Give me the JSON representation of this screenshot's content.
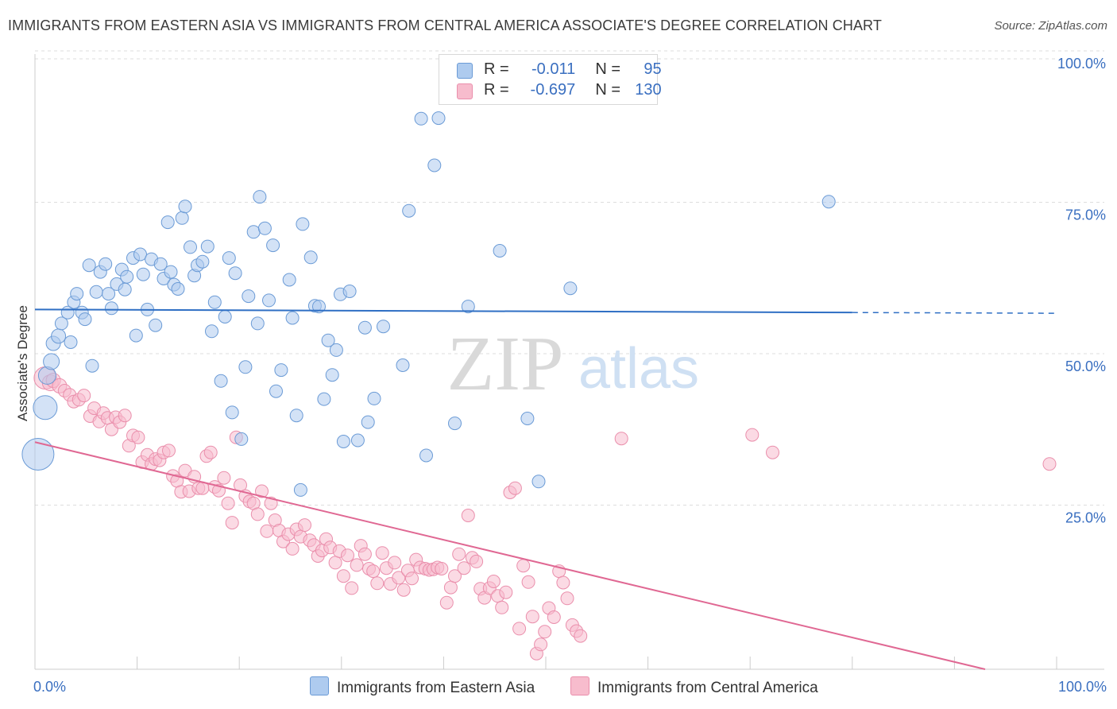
{
  "title": "IMMIGRANTS FROM EASTERN ASIA VS IMMIGRANTS FROM CENTRAL AMERICA ASSOCIATE'S DEGREE CORRELATION CHART",
  "source": "Source: ZipAtlas.com",
  "watermark": {
    "zip": "ZIP",
    "atlas": "atlas"
  },
  "legend": {
    "blue": {
      "r_label": "R =",
      "r_value": "-0.011",
      "n_label": "N =",
      "n_value": "95"
    },
    "pink": {
      "r_label": "R =",
      "r_value": "-0.697",
      "n_label": "N =",
      "n_value": "130"
    }
  },
  "colors": {
    "blue_fill": "#aecbef",
    "blue_stroke": "#6b9bd6",
    "blue_line": "#2f6fc4",
    "pink_fill": "#f7bccd",
    "pink_stroke": "#ea8fac",
    "pink_line": "#e06893",
    "tick_label": "#3a6fc0",
    "grid": "#dddddd"
  },
  "chart_data": {
    "type": "scatter",
    "title": "IMMIGRANTS FROM EASTERN ASIA VS IMMIGRANTS FROM CENTRAL AMERICA ASSOCIATE'S DEGREE CORRELATION CHART",
    "xlabel": "",
    "ylabel": "Associate's Degree",
    "xlim": [
      0,
      100
    ],
    "ylim": [
      0,
      100
    ],
    "x_tick_labels": [
      "0.0%",
      "100.0%"
    ],
    "y_ticks": [
      25,
      50,
      75,
      100
    ],
    "y_tick_labels": [
      "25.0%",
      "50.0%",
      "75.0%",
      "100.0%"
    ],
    "series": [
      {
        "name": "Immigrants from Eastern Asia",
        "color": "blue",
        "trend": {
          "x0": 0,
          "y0": 59.4,
          "x1": 80,
          "y1": 58.9,
          "dash_to": 100
        },
        "points": [
          [
            0.3,
            35.5,
            20
          ],
          [
            1.0,
            43.2,
            15
          ],
          [
            1.2,
            48.5,
            11
          ],
          [
            1.6,
            50.8,
            10
          ],
          [
            1.8,
            53.8,
            9
          ],
          [
            2.3,
            55.0,
            9
          ],
          [
            2.6,
            57.1,
            8
          ],
          [
            3.2,
            58.9,
            8
          ],
          [
            3.5,
            54.0,
            8
          ],
          [
            3.8,
            60.6,
            8
          ],
          [
            4.1,
            62.0,
            8
          ],
          [
            4.6,
            58.9,
            8
          ],
          [
            4.9,
            57.8,
            8
          ],
          [
            5.6,
            50.1,
            8
          ],
          [
            6.0,
            62.3,
            8
          ],
          [
            6.4,
            65.6,
            8
          ],
          [
            5.3,
            66.7,
            8
          ],
          [
            6.9,
            66.9,
            8
          ],
          [
            7.2,
            62.0,
            8
          ],
          [
            7.5,
            59.6,
            8
          ],
          [
            8.0,
            63.6,
            8
          ],
          [
            8.5,
            66.0,
            8
          ],
          [
            8.8,
            62.7,
            8
          ],
          [
            9.0,
            64.8,
            8
          ],
          [
            9.6,
            67.9,
            8
          ],
          [
            9.9,
            55.1,
            8
          ],
          [
            10.3,
            68.5,
            8
          ],
          [
            10.6,
            65.2,
            8
          ],
          [
            11.0,
            59.4,
            8
          ],
          [
            11.4,
            67.7,
            8
          ],
          [
            11.8,
            56.8,
            8
          ],
          [
            12.3,
            66.9,
            8
          ],
          [
            12.6,
            64.5,
            8
          ],
          [
            13.0,
            73.8,
            8
          ],
          [
            13.3,
            65.6,
            8
          ],
          [
            13.6,
            63.5,
            8
          ],
          [
            14.0,
            62.8,
            8
          ],
          [
            14.4,
            74.5,
            8
          ],
          [
            14.7,
            76.4,
            8
          ],
          [
            15.2,
            69.7,
            8
          ],
          [
            15.6,
            65.0,
            8
          ],
          [
            15.9,
            66.7,
            8
          ],
          [
            16.4,
            67.3,
            8
          ],
          [
            16.9,
            69.8,
            8
          ],
          [
            17.3,
            55.8,
            8
          ],
          [
            17.6,
            60.6,
            8
          ],
          [
            18.2,
            47.6,
            8
          ],
          [
            18.6,
            58.2,
            8
          ],
          [
            19.0,
            67.9,
            8
          ],
          [
            19.3,
            42.4,
            8
          ],
          [
            19.6,
            65.4,
            8
          ],
          [
            20.2,
            38.0,
            8
          ],
          [
            20.6,
            49.9,
            8
          ],
          [
            20.9,
            61.6,
            8
          ],
          [
            21.4,
            72.2,
            8
          ],
          [
            21.8,
            57.1,
            8
          ],
          [
            22.0,
            78.0,
            8
          ],
          [
            22.5,
            72.8,
            8
          ],
          [
            22.9,
            60.9,
            8
          ],
          [
            23.3,
            70.0,
            8
          ],
          [
            23.6,
            45.9,
            8
          ],
          [
            24.1,
            49.4,
            8
          ],
          [
            24.9,
            64.3,
            8
          ],
          [
            25.2,
            58.0,
            8
          ],
          [
            25.6,
            41.9,
            8
          ],
          [
            26.0,
            29.6,
            8
          ],
          [
            26.2,
            73.5,
            8
          ],
          [
            27.0,
            68.0,
            8
          ],
          [
            27.4,
            60.0,
            8
          ],
          [
            27.8,
            59.9,
            8
          ],
          [
            28.3,
            44.6,
            8
          ],
          [
            28.7,
            54.3,
            8
          ],
          [
            29.1,
            48.6,
            8
          ],
          [
            29.5,
            52.7,
            8
          ],
          [
            29.9,
            61.9,
            8
          ],
          [
            30.2,
            37.6,
            8
          ],
          [
            30.8,
            62.4,
            8
          ],
          [
            31.6,
            37.8,
            8
          ],
          [
            32.3,
            56.4,
            8
          ],
          [
            32.6,
            40.8,
            8
          ],
          [
            33.2,
            44.7,
            8
          ],
          [
            34.1,
            56.6,
            8
          ],
          [
            36.0,
            50.2,
            8
          ],
          [
            36.6,
            75.7,
            8
          ],
          [
            37.8,
            90.9,
            8
          ],
          [
            38.3,
            35.3,
            8
          ],
          [
            39.1,
            83.2,
            8
          ],
          [
            39.5,
            91.0,
            8
          ],
          [
            41.1,
            40.6,
            8
          ],
          [
            42.4,
            59.9,
            8
          ],
          [
            45.5,
            69.1,
            8
          ],
          [
            48.2,
            41.4,
            8
          ],
          [
            49.3,
            31.0,
            8
          ],
          [
            52.4,
            62.9,
            8
          ],
          [
            77.7,
            77.2,
            8
          ]
        ]
      },
      {
        "name": "Immigrants from Central America",
        "color": "pink",
        "trend": {
          "x0": 0,
          "y0": 37.5,
          "x1": 93,
          "y1": 0
        },
        "points": [
          [
            1.0,
            48.1,
            14
          ],
          [
            1.5,
            47.3,
            10
          ],
          [
            1.8,
            47.7,
            9
          ],
          [
            2.4,
            46.8,
            9
          ],
          [
            2.9,
            46.0,
            8
          ],
          [
            3.4,
            45.3,
            8
          ],
          [
            3.8,
            44.2,
            8
          ],
          [
            4.3,
            44.5,
            8
          ],
          [
            4.8,
            45.2,
            8
          ],
          [
            5.4,
            41.8,
            8
          ],
          [
            5.8,
            43.1,
            8
          ],
          [
            6.3,
            40.9,
            8
          ],
          [
            6.7,
            42.3,
            8
          ],
          [
            7.1,
            41.5,
            8
          ],
          [
            7.5,
            39.6,
            8
          ],
          [
            7.9,
            41.6,
            8
          ],
          [
            8.3,
            40.8,
            8
          ],
          [
            8.8,
            41.9,
            8
          ],
          [
            9.2,
            36.9,
            8
          ],
          [
            9.6,
            38.6,
            8
          ],
          [
            10.1,
            38.3,
            8
          ],
          [
            10.5,
            34.2,
            8
          ],
          [
            11.0,
            35.4,
            8
          ],
          [
            11.4,
            33.9,
            8
          ],
          [
            11.8,
            34.7,
            8
          ],
          [
            12.2,
            34.5,
            8
          ],
          [
            12.6,
            35.8,
            8
          ],
          [
            13.1,
            36.1,
            8
          ],
          [
            13.5,
            31.9,
            8
          ],
          [
            13.9,
            31.1,
            8
          ],
          [
            14.3,
            29.3,
            8
          ],
          [
            14.7,
            32.8,
            8
          ],
          [
            15.1,
            29.4,
            8
          ],
          [
            15.6,
            31.8,
            8
          ],
          [
            16.0,
            29.9,
            8
          ],
          [
            16.4,
            29.9,
            8
          ],
          [
            16.8,
            35.2,
            8
          ],
          [
            17.2,
            35.8,
            8
          ],
          [
            17.6,
            30.1,
            8
          ],
          [
            18.0,
            29.5,
            8
          ],
          [
            18.5,
            31.6,
            8
          ],
          [
            18.9,
            27.4,
            8
          ],
          [
            19.3,
            24.2,
            8
          ],
          [
            19.7,
            38.3,
            8
          ],
          [
            20.1,
            30.4,
            8
          ],
          [
            20.6,
            28.6,
            8
          ],
          [
            21.0,
            27.7,
            8
          ],
          [
            21.4,
            27.4,
            8
          ],
          [
            21.8,
            25.6,
            8
          ],
          [
            22.2,
            29.4,
            8
          ],
          [
            22.7,
            22.8,
            8
          ],
          [
            23.1,
            27.4,
            8
          ],
          [
            23.5,
            24.6,
            8
          ],
          [
            23.9,
            22.9,
            8
          ],
          [
            24.3,
            21.1,
            8
          ],
          [
            24.8,
            22.3,
            8
          ],
          [
            25.2,
            19.9,
            8
          ],
          [
            25.6,
            23.1,
            8
          ],
          [
            26.0,
            21.9,
            8
          ],
          [
            26.4,
            23.8,
            8
          ],
          [
            26.9,
            21.3,
            8
          ],
          [
            27.3,
            20.5,
            8
          ],
          [
            27.7,
            18.7,
            8
          ],
          [
            28.1,
            19.6,
            8
          ],
          [
            28.5,
            21.5,
            8
          ],
          [
            28.9,
            20.1,
            8
          ],
          [
            29.4,
            17.6,
            8
          ],
          [
            29.8,
            19.5,
            8
          ],
          [
            30.2,
            15.4,
            8
          ],
          [
            30.6,
            18.8,
            8
          ],
          [
            31.0,
            13.4,
            8
          ],
          [
            31.5,
            17.2,
            8
          ],
          [
            31.9,
            20.4,
            8
          ],
          [
            32.3,
            19.0,
            8
          ],
          [
            32.7,
            16.6,
            8
          ],
          [
            33.1,
            16.2,
            8
          ],
          [
            33.5,
            14.2,
            8
          ],
          [
            34.0,
            19.2,
            8
          ],
          [
            34.4,
            16.7,
            8
          ],
          [
            34.8,
            14.1,
            8
          ],
          [
            35.2,
            17.6,
            8
          ],
          [
            35.6,
            15.1,
            8
          ],
          [
            36.1,
            13.1,
            8
          ],
          [
            36.5,
            16.3,
            8
          ],
          [
            36.9,
            15.0,
            8
          ],
          [
            37.3,
            18.1,
            8
          ],
          [
            37.7,
            16.8,
            8
          ],
          [
            38.2,
            16.6,
            8
          ],
          [
            38.6,
            16.4,
            8
          ],
          [
            39.0,
            16.5,
            8
          ],
          [
            39.4,
            16.8,
            8
          ],
          [
            39.8,
            16.6,
            8
          ],
          [
            40.3,
            11.0,
            8
          ],
          [
            40.7,
            13.5,
            8
          ],
          [
            41.1,
            15.4,
            8
          ],
          [
            41.5,
            19.0,
            8
          ],
          [
            42.0,
            16.7,
            8
          ],
          [
            42.4,
            25.4,
            8
          ],
          [
            42.8,
            18.4,
            8
          ],
          [
            43.2,
            17.8,
            8
          ],
          [
            43.6,
            13.3,
            8
          ],
          [
            44.0,
            11.8,
            8
          ],
          [
            44.5,
            13.4,
            8
          ],
          [
            44.9,
            14.5,
            8
          ],
          [
            45.3,
            12.1,
            8
          ],
          [
            45.7,
            10.2,
            8
          ],
          [
            46.1,
            12.7,
            8
          ],
          [
            46.5,
            29.2,
            8
          ],
          [
            47.0,
            29.9,
            8
          ],
          [
            47.4,
            6.7,
            8
          ],
          [
            47.8,
            17.1,
            8
          ],
          [
            48.3,
            14.4,
            8
          ],
          [
            48.7,
            8.7,
            8
          ],
          [
            49.1,
            2.6,
            8
          ],
          [
            49.5,
            4.1,
            8
          ],
          [
            49.9,
            6.2,
            8
          ],
          [
            50.3,
            10.1,
            8
          ],
          [
            50.8,
            8.6,
            8
          ],
          [
            51.3,
            16.2,
            8
          ],
          [
            51.7,
            14.3,
            8
          ],
          [
            52.1,
            11.7,
            8
          ],
          [
            52.6,
            7.3,
            8
          ],
          [
            53.0,
            6.3,
            8
          ],
          [
            53.4,
            5.5,
            8
          ],
          [
            57.4,
            38.1,
            8
          ],
          [
            70.2,
            38.7,
            8
          ],
          [
            72.2,
            35.8,
            8
          ],
          [
            99.3,
            33.9,
            8
          ]
        ]
      }
    ]
  },
  "bottom_legend": {
    "blue_label": "Immigrants from Eastern Asia",
    "pink_label": "Immigrants from Central America"
  }
}
